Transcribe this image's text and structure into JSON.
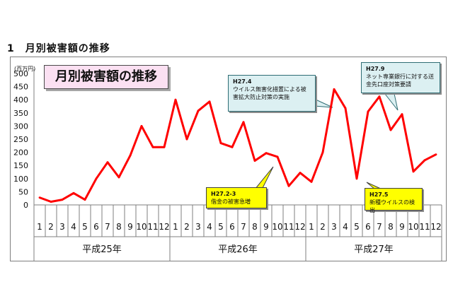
{
  "section_heading": "1　月別被害額の推移",
  "chart_data": {
    "type": "line",
    "title": "月別被害額の推移",
    "ylabel": "(百万円)",
    "ylim": [
      0,
      500
    ],
    "yticks": [
      0,
      50,
      100,
      150,
      200,
      250,
      300,
      350,
      400,
      450,
      500
    ],
    "month_labels": [
      "1",
      "2",
      "3",
      "4",
      "5",
      "6",
      "7",
      "8",
      "9",
      "10",
      "11",
      "12",
      "1",
      "2",
      "3",
      "4",
      "5",
      "6",
      "7",
      "8",
      "9",
      "10",
      "11",
      "12",
      "1",
      "2",
      "3",
      "4",
      "5",
      "6",
      "7",
      "8",
      "9",
      "10",
      "11",
      "12"
    ],
    "year_groups": [
      "平成25年",
      "平成26年",
      "平成27年"
    ],
    "series": [
      {
        "color": "#ff0000",
        "values": [
          28,
          12,
          20,
          45,
          20,
          100,
          162,
          105,
          188,
          300,
          220,
          220,
          400,
          250,
          358,
          393,
          235,
          220,
          315,
          168,
          197,
          183,
          72,
          122,
          88,
          200,
          440,
          368,
          100,
          355,
          412,
          285,
          345,
          127,
          170,
          192
        ]
      }
    ],
    "grid": false
  },
  "callouts": [
    {
      "date": "H27.4",
      "text": "ウイルス無害化措置による被害拡大防止対策の実施",
      "style": "teal"
    },
    {
      "date": "H27.9",
      "text": "ネット専業銀行に対する送金先口座対策要請",
      "style": "teal"
    },
    {
      "date": "H27.2-3",
      "text": "偕金の被害急増",
      "style": "yellow"
    },
    {
      "date": "H27.5",
      "text": "新種ウイルスの検出",
      "style": "yellow"
    }
  ]
}
